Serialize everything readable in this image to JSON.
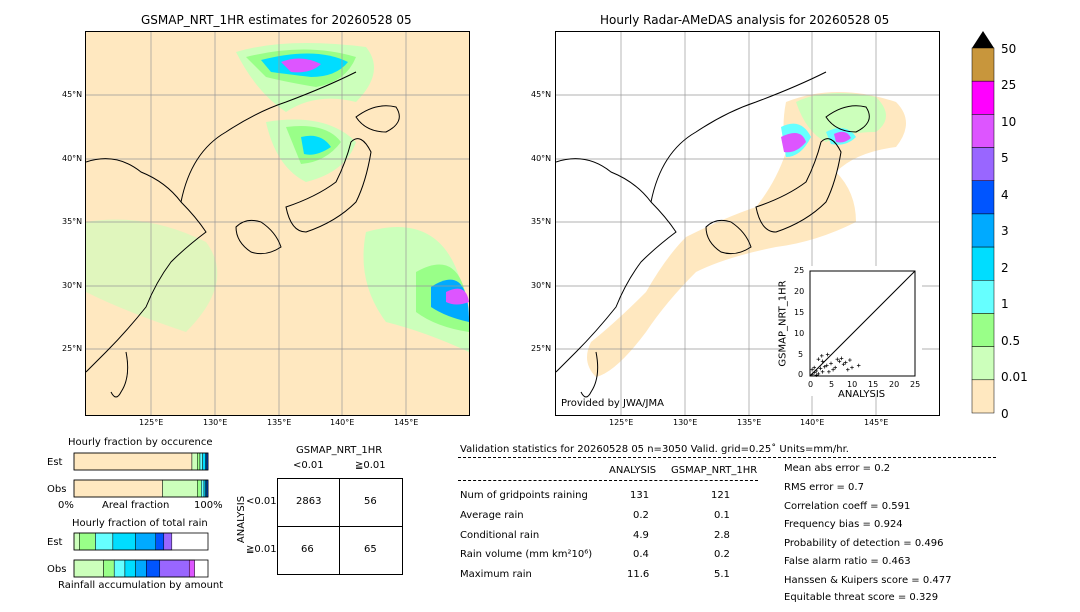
{
  "left_map": {
    "title": "GSMAP_NRT_1HR estimates for 20260528 05",
    "lat_labels": [
      "45°N",
      "40°N",
      "35°N",
      "30°N",
      "25°N"
    ],
    "lon_labels": [
      "125°E",
      "130°E",
      "135°E",
      "140°E",
      "145°E"
    ]
  },
  "right_map": {
    "title": "Hourly Radar-AMeDAS analysis for 20260528 05",
    "lat_labels": [
      "45°N",
      "40°N",
      "35°N",
      "30°N",
      "25°N"
    ],
    "lon_labels": [
      "125°E",
      "130°E",
      "135°E",
      "140°E",
      "145°E"
    ],
    "provided_by": "Provided by JWA/JMA"
  },
  "colorbar": {
    "labels": [
      "50",
      "25",
      "10",
      "5",
      "4",
      "3",
      "2",
      "1",
      "0.5",
      "0.01",
      "0"
    ],
    "colors": [
      "#c8963c",
      "#ff00ff",
      "#dd55ff",
      "#9966ff",
      "#0055ff",
      "#00aaff",
      "#00ddff",
      "#66ffff",
      "#99ff88",
      "#ccffbb",
      "#ffe8c0"
    ]
  },
  "scatter": {
    "xlabel": "ANALYSIS",
    "ylabel": "GSMAP_NRT_1HR",
    "ticks": [
      "0",
      "5",
      "10",
      "15",
      "20",
      "25"
    ]
  },
  "occurrence": {
    "title": "Hourly fraction by occurence",
    "row_labels": [
      "Est",
      "Obs"
    ],
    "axis_left": "0%",
    "axis_mid": "Areal fraction",
    "axis_right": "100%"
  },
  "total_rain": {
    "title": "Hourly fraction of total rain",
    "row_labels": [
      "Est",
      "Obs"
    ],
    "footer": "Rainfall accumulation by amount"
  },
  "contingency": {
    "title": "GSMAP_NRT_1HR",
    "col_headers": [
      "<0.01",
      "≧0.01"
    ],
    "row_axis": "ANALYSIS",
    "row_headers": [
      "<0.01",
      "≧0.01"
    ],
    "cells": [
      [
        "2863",
        "56"
      ],
      [
        "66",
        "65"
      ]
    ]
  },
  "validation": {
    "header": "Validation statistics for 20260528 05  n=3050 Valid. grid=0.25˚ Units=mm/hr.",
    "col_analysis": "ANALYSIS",
    "col_gsmap": "GSMAP_NRT_1HR",
    "rows": [
      {
        "label": "Num of gridpoints raining",
        "a": "131",
        "g": "121"
      },
      {
        "label": "Average rain",
        "a": "0.2",
        "g": "0.1"
      },
      {
        "label": "Conditional rain",
        "a": "4.9",
        "g": "2.8"
      },
      {
        "label": "Rain volume (mm km²10⁶)",
        "a": "0.4",
        "g": "0.2"
      },
      {
        "label": "Maximum rain",
        "a": "11.6",
        "g": "5.1"
      }
    ],
    "scores": [
      "Mean abs error =    0.2",
      "RMS error =    0.7",
      "Correlation coeff =  0.591",
      "Frequency bias =  0.924",
      "Probability of detection =  0.496",
      "False alarm ratio =  0.463",
      "Hanssen & Kuipers score =  0.477",
      "Equitable threat score =  0.329"
    ]
  },
  "chart_data": [
    {
      "type": "bar",
      "title": "Hourly fraction by occurence",
      "categories": [
        "Est",
        "Obs"
      ],
      "series": [
        {
          "name": "0",
          "values": [
            0.88,
            0.66
          ]
        },
        {
          "name": "0.01",
          "values": [
            0.04,
            0.26
          ]
        },
        {
          "name": "0.5",
          "values": [
            0.02,
            0.03
          ]
        },
        {
          "name": "1",
          "values": [
            0.02,
            0.02
          ]
        },
        {
          "name": "2",
          "values": [
            0.02,
            0.01
          ]
        },
        {
          "name": "3",
          "values": [
            0.01,
            0.01
          ]
        },
        {
          "name": "4",
          "values": [
            0.01,
            0.01
          ]
        }
      ]
    },
    {
      "type": "bar",
      "title": "Hourly fraction of total rain",
      "categories": [
        "Est",
        "Obs"
      ],
      "series": [
        {
          "name": "0.01",
          "values": [
            0.04,
            0.22
          ]
        },
        {
          "name": "0.5",
          "values": [
            0.12,
            0.08
          ]
        },
        {
          "name": "1",
          "values": [
            0.13,
            0.08
          ]
        },
        {
          "name": "2",
          "values": [
            0.17,
            0.08
          ]
        },
        {
          "name": "3",
          "values": [
            0.15,
            0.08
          ]
        },
        {
          "name": "4",
          "values": [
            0.06,
            0.1
          ]
        },
        {
          "name": "5",
          "values": [
            0.06,
            0.22
          ]
        },
        {
          "name": "10",
          "values": [
            0,
            0.04
          ]
        }
      ]
    },
    {
      "type": "scatter",
      "xlabel": "ANALYSIS",
      "ylabel": "GSMAP_NRT_1HR",
      "xlim": [
        0,
        25
      ],
      "ylim": [
        0,
        25
      ],
      "points": [
        [
          0.5,
          0.3
        ],
        [
          1,
          0.8
        ],
        [
          1.5,
          1.2
        ],
        [
          2,
          0.5
        ],
        [
          2.5,
          1.8
        ],
        [
          3,
          1
        ],
        [
          1,
          2
        ],
        [
          0.5,
          1.5
        ],
        [
          4,
          2.5
        ],
        [
          5,
          3
        ],
        [
          6,
          2
        ],
        [
          7,
          3.5
        ],
        [
          8,
          2.8
        ],
        [
          9,
          1.5
        ],
        [
          10,
          2
        ],
        [
          11.6,
          2.5
        ],
        [
          3,
          3.5
        ],
        [
          2,
          4
        ],
        [
          1.5,
          0.2
        ],
        [
          4.5,
          1
        ],
        [
          6.5,
          4
        ],
        [
          8.5,
          3.2
        ],
        [
          5.5,
          1.5
        ],
        [
          3.5,
          2.2
        ],
        [
          7.5,
          4.2
        ],
        [
          9.5,
          3.8
        ],
        [
          2.8,
          4.8
        ],
        [
          4.2,
          5.1
        ]
      ]
    }
  ]
}
